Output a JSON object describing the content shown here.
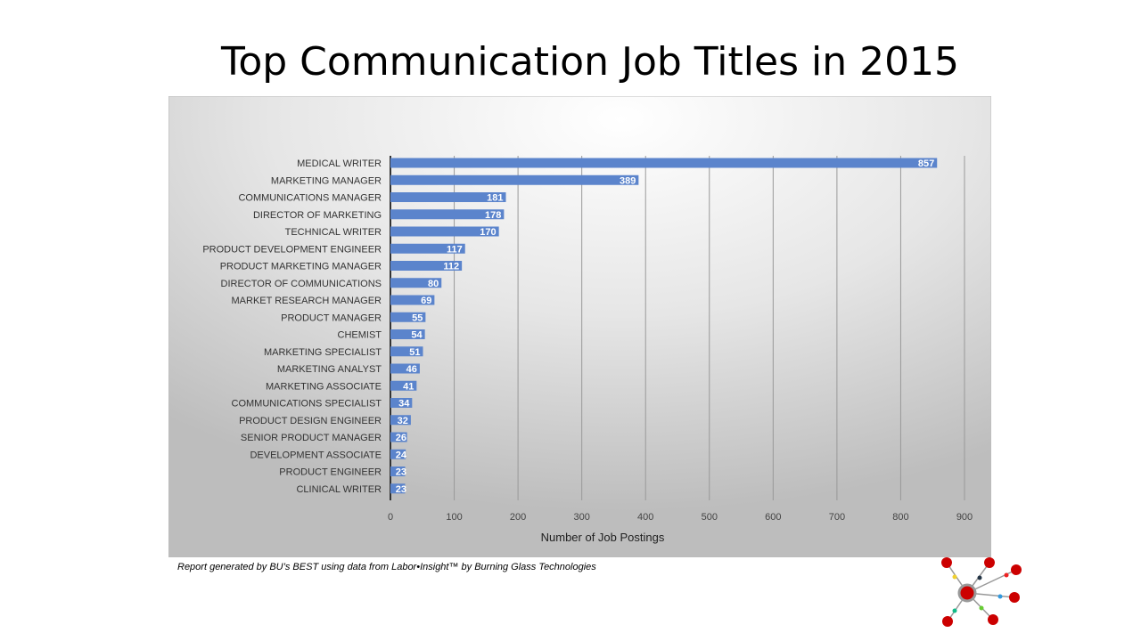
{
  "title": "Top Communication Job Titles in 2015",
  "footer": "Report generated by BU’s BEST using data from Labor•Insight™ by Burning Glass Technologies",
  "chart_data": {
    "type": "bar",
    "orientation": "horizontal",
    "title": "Top Communication Job Titles in 2015",
    "xlabel": "Number of Job Postings",
    "ylabel": "",
    "xlim": [
      0,
      900
    ],
    "xticks": [
      0,
      100,
      200,
      300,
      400,
      500,
      600,
      700,
      800,
      900
    ],
    "grid": true,
    "bar_color": "#5b84cc",
    "categories": [
      "MEDICAL WRITER",
      "MARKETING MANAGER",
      "COMMUNICATIONS MANAGER",
      "DIRECTOR OF MARKETING",
      "TECHNICAL WRITER",
      "PRODUCT DEVELOPMENT ENGINEER",
      "PRODUCT MARKETING MANAGER",
      "DIRECTOR OF COMMUNICATIONS",
      "MARKET RESEARCH MANAGER",
      "PRODUCT MANAGER",
      "CHEMIST",
      "MARKETING SPECIALIST",
      "MARKETING ANALYST",
      "MARKETING ASSOCIATE",
      "COMMUNICATIONS SPECIALIST",
      "PRODUCT DESIGN ENGINEER",
      "SENIOR PRODUCT MANAGER",
      "DEVELOPMENT ASSOCIATE",
      "PRODUCT ENGINEER",
      "CLINICAL WRITER"
    ],
    "values": [
      857,
      389,
      181,
      178,
      170,
      117,
      112,
      80,
      69,
      55,
      54,
      51,
      46,
      41,
      34,
      32,
      26,
      24,
      23,
      23
    ]
  }
}
